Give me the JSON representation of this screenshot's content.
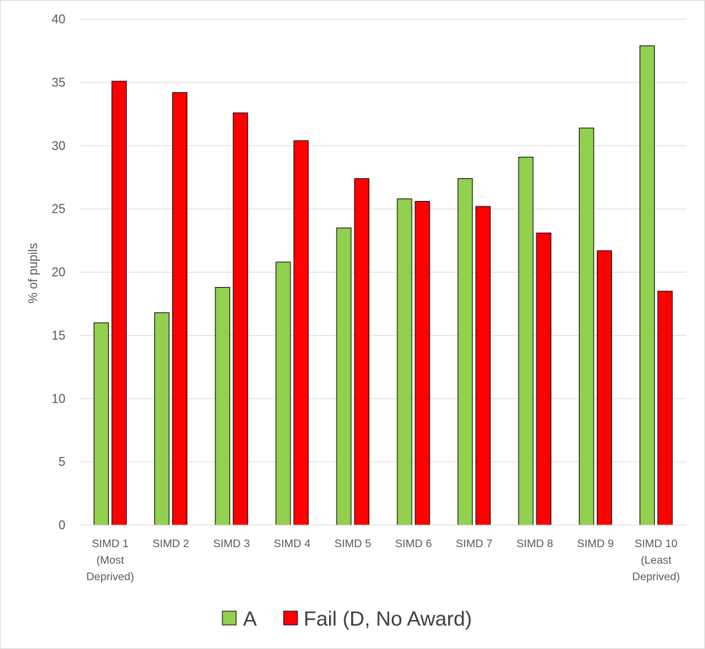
{
  "chart_data": {
    "type": "bar",
    "title": "",
    "xlabel": "",
    "ylabel": "% of pupils",
    "ylim": [
      0,
      40
    ],
    "yticks": [
      0,
      5,
      10,
      15,
      20,
      25,
      30,
      35,
      40
    ],
    "grid": true,
    "legend_position": "bottom",
    "categories": [
      [
        "SIMD 1",
        "(Most",
        "Deprived)"
      ],
      [
        "SIMD 2"
      ],
      [
        "SIMD 3"
      ],
      [
        "SIMD 4"
      ],
      [
        "SIMD 5"
      ],
      [
        "SIMD 6"
      ],
      [
        "SIMD 7"
      ],
      [
        "SIMD 8"
      ],
      [
        "SIMD 9"
      ],
      [
        "SIMD 10",
        "(Least",
        "Deprived)"
      ]
    ],
    "series": [
      {
        "name": "A",
        "color": "#92d050",
        "values": [
          16.0,
          16.8,
          18.8,
          20.8,
          23.5,
          25.8,
          27.4,
          29.1,
          31.4,
          37.9
        ]
      },
      {
        "name": "Fail (D, No Award)",
        "color": "#ff0000",
        "values": [
          35.1,
          34.2,
          32.6,
          30.4,
          27.4,
          25.6,
          25.2,
          23.1,
          21.7,
          18.5
        ]
      }
    ]
  }
}
